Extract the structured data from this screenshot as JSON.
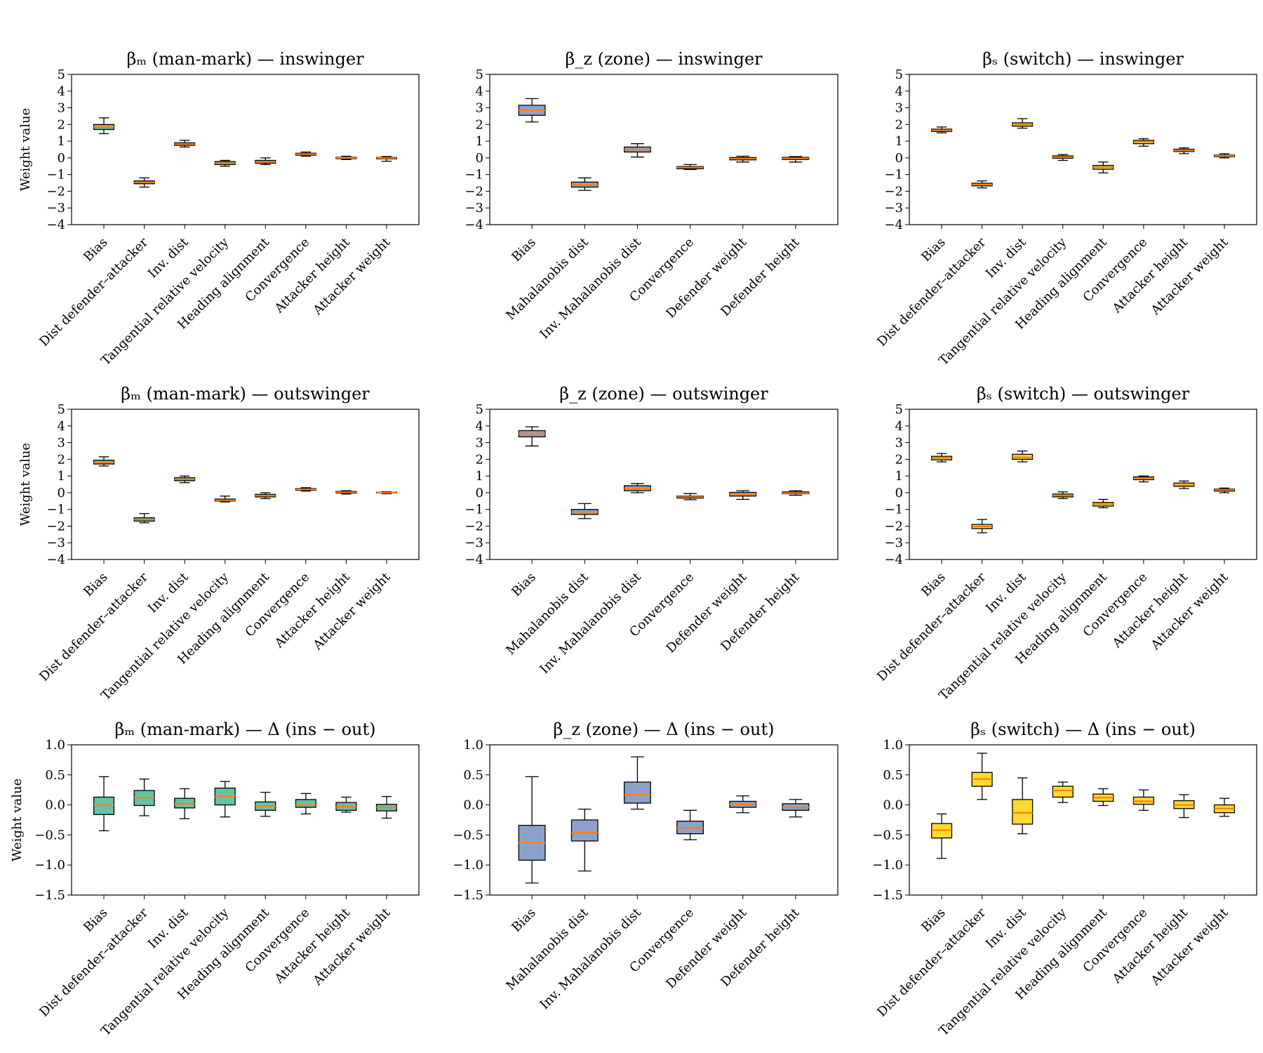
{
  "chart_data": [
    {
      "type": "box",
      "title": "βₘ (man-mark) — inswinger",
      "ylabel": "Weight value",
      "ylim": [
        -4,
        5
      ],
      "yticks": [
        "5",
        "4",
        "3",
        "2",
        "1",
        "0",
        "−1",
        "−2",
        "−3",
        "−4"
      ],
      "box_color": "#66c2a5",
      "categories": [
        "Bias",
        "Dist defender–attacker",
        "Inv. dist",
        "Tangential relative velocity",
        "Heading alignment",
        "Convergence",
        "Attacker height",
        "Attacker weight"
      ],
      "boxes": [
        {
          "min": 1.45,
          "q1": 1.7,
          "median": 1.85,
          "q3": 2.0,
          "max": 2.4
        },
        {
          "min": -1.75,
          "q1": -1.55,
          "median": -1.47,
          "q3": -1.38,
          "max": -1.2
        },
        {
          "min": 0.65,
          "q1": 0.75,
          "median": 0.82,
          "q3": 0.9,
          "max": 1.05
        },
        {
          "min": -0.5,
          "q1": -0.4,
          "median": -0.32,
          "q3": -0.22,
          "max": -0.15
        },
        {
          "min": -0.4,
          "q1": -0.32,
          "median": -0.25,
          "q3": -0.15,
          "max": 0.0
        },
        {
          "min": 0.1,
          "q1": 0.16,
          "median": 0.22,
          "q3": 0.28,
          "max": 0.35
        },
        {
          "min": -0.1,
          "q1": -0.05,
          "median": 0.0,
          "q3": 0.04,
          "max": 0.1
        },
        {
          "min": -0.2,
          "q1": -0.06,
          "median": -0.01,
          "q3": 0.03,
          "max": 0.08
        }
      ]
    },
    {
      "type": "box",
      "title": "β_z (zone) — inswinger",
      "ylabel": "",
      "ylim": [
        -4,
        5
      ],
      "yticks": [
        "5",
        "4",
        "3",
        "2",
        "1",
        "0",
        "−1",
        "−2",
        "−3",
        "−4"
      ],
      "box_color": "#8da0cb",
      "categories": [
        "Bias",
        "Mahalanobis dist",
        "Inv. Mahalanobis dist",
        "Convergence",
        "Defender weight",
        "Defender height"
      ],
      "boxes": [
        {
          "min": 2.15,
          "q1": 2.55,
          "median": 2.85,
          "q3": 3.15,
          "max": 3.55
        },
        {
          "min": -1.95,
          "q1": -1.75,
          "median": -1.62,
          "q3": -1.45,
          "max": -1.2
        },
        {
          "min": 0.05,
          "q1": 0.35,
          "median": 0.5,
          "q3": 0.65,
          "max": 0.85
        },
        {
          "min": -0.7,
          "q1": -0.65,
          "median": -0.58,
          "q3": -0.52,
          "max": -0.4
        },
        {
          "min": -0.25,
          "q1": -0.12,
          "median": -0.05,
          "q3": 0.02,
          "max": 0.1
        },
        {
          "min": -0.25,
          "q1": -0.1,
          "median": -0.03,
          "q3": 0.03,
          "max": 0.08
        }
      ]
    },
    {
      "type": "box",
      "title": "βₛ (switch) — inswinger",
      "ylabel": "",
      "ylim": [
        -4,
        5
      ],
      "yticks": [
        "5",
        "4",
        "3",
        "2",
        "1",
        "0",
        "−1",
        "−2",
        "−3",
        "−4"
      ],
      "box_color": "#ffd92f",
      "categories": [
        "Bias",
        "Dist defender–attacker",
        "Inv. dist",
        "Tangential relative velocity",
        "Heading alignment",
        "Convergence",
        "Attacker height",
        "Attacker weight"
      ],
      "boxes": [
        {
          "min": 1.5,
          "q1": 1.58,
          "median": 1.65,
          "q3": 1.72,
          "max": 1.85
        },
        {
          "min": -1.8,
          "q1": -1.68,
          "median": -1.6,
          "q3": -1.52,
          "max": -1.38
        },
        {
          "min": 1.78,
          "q1": 1.9,
          "median": 2.0,
          "q3": 2.1,
          "max": 2.35
        },
        {
          "min": -0.15,
          "q1": -0.02,
          "median": 0.05,
          "q3": 0.12,
          "max": 0.2
        },
        {
          "min": -0.9,
          "q1": -0.68,
          "median": -0.55,
          "q3": -0.45,
          "max": -0.25
        },
        {
          "min": 0.7,
          "q1": 0.85,
          "median": 0.97,
          "q3": 1.05,
          "max": 1.15
        },
        {
          "min": 0.25,
          "q1": 0.38,
          "median": 0.45,
          "q3": 0.52,
          "max": 0.6
        },
        {
          "min": 0.0,
          "q1": 0.07,
          "median": 0.12,
          "q3": 0.17,
          "max": 0.25
        }
      ]
    },
    {
      "type": "box",
      "title": "βₘ (man-mark) — outswinger",
      "ylabel": "Weight value",
      "ylim": [
        -4,
        5
      ],
      "yticks": [
        "5",
        "4",
        "3",
        "2",
        "1",
        "0",
        "−1",
        "−2",
        "−3",
        "−4"
      ],
      "box_color": "#66c2a5",
      "categories": [
        "Bias",
        "Dist defender–attacker",
        "Inv. dist",
        "Tangential relative velocity",
        "Heading alignment",
        "Convergence",
        "Attacker height",
        "Attacker weight"
      ],
      "boxes": [
        {
          "min": 1.6,
          "q1": 1.72,
          "median": 1.82,
          "q3": 1.95,
          "max": 2.15
        },
        {
          "min": -1.8,
          "q1": -1.7,
          "median": -1.6,
          "q3": -1.5,
          "max": -1.25
        },
        {
          "min": 0.6,
          "q1": 0.72,
          "median": 0.8,
          "q3": 0.9,
          "max": 1.0
        },
        {
          "min": -0.55,
          "q1": -0.5,
          "median": -0.45,
          "q3": -0.38,
          "max": -0.2
        },
        {
          "min": -0.35,
          "q1": -0.25,
          "median": -0.18,
          "q3": -0.1,
          "max": 0.0
        },
        {
          "min": 0.1,
          "q1": 0.15,
          "median": 0.2,
          "q3": 0.25,
          "max": 0.3
        },
        {
          "min": -0.08,
          "q1": -0.02,
          "median": 0.03,
          "q3": 0.08,
          "max": 0.12
        },
        {
          "min": -0.06,
          "q1": -0.02,
          "median": 0.0,
          "q3": 0.03,
          "max": 0.06
        }
      ]
    },
    {
      "type": "box",
      "title": "β_z (zone) — outswinger",
      "ylabel": "",
      "ylim": [
        -4,
        5
      ],
      "yticks": [
        "5",
        "4",
        "3",
        "2",
        "1",
        "0",
        "−1",
        "−2",
        "−3",
        "−4"
      ],
      "box_color": "#8da0cb",
      "categories": [
        "Bias",
        "Mahalanobis dist",
        "Inv. Mahalanobis dist",
        "Convergence",
        "Defender weight",
        "Defender height"
      ],
      "boxes": [
        {
          "min": 2.8,
          "q1": 3.35,
          "median": 3.55,
          "q3": 3.72,
          "max": 3.95
        },
        {
          "min": -1.55,
          "q1": -1.3,
          "median": -1.15,
          "q3": -1.0,
          "max": -0.65
        },
        {
          "min": 0.0,
          "q1": 0.12,
          "median": 0.25,
          "q3": 0.42,
          "max": 0.55
        },
        {
          "min": -0.42,
          "q1": -0.32,
          "median": -0.25,
          "q3": -0.2,
          "max": -0.05
        },
        {
          "min": -0.4,
          "q1": -0.2,
          "median": -0.1,
          "q3": 0.02,
          "max": 0.12
        },
        {
          "min": -0.15,
          "q1": -0.06,
          "median": -0.02,
          "q3": 0.05,
          "max": 0.12
        }
      ]
    },
    {
      "type": "box",
      "title": "βₛ (switch) — outswinger",
      "ylabel": "",
      "ylim": [
        -4,
        5
      ],
      "yticks": [
        "5",
        "4",
        "3",
        "2",
        "1",
        "0",
        "−1",
        "−2",
        "−3",
        "−4"
      ],
      "box_color": "#ffd92f",
      "categories": [
        "Bias",
        "Dist defender–attacker",
        "Inv. dist",
        "Tangential relative velocity",
        "Heading alignment",
        "Convergence",
        "Attacker height",
        "Attacker weight"
      ],
      "boxes": [
        {
          "min": 1.85,
          "q1": 1.97,
          "median": 2.08,
          "q3": 2.18,
          "max": 2.35
        },
        {
          "min": -2.4,
          "q1": -2.15,
          "median": -2.02,
          "q3": -1.9,
          "max": -1.6
        },
        {
          "min": 1.85,
          "q1": 2.0,
          "median": 2.12,
          "q3": 2.3,
          "max": 2.5
        },
        {
          "min": -0.35,
          "q1": -0.25,
          "median": -0.17,
          "q3": -0.08,
          "max": 0.05
        },
        {
          "min": -0.9,
          "q1": -0.8,
          "median": -0.68,
          "q3": -0.58,
          "max": -0.4
        },
        {
          "min": 0.65,
          "q1": 0.78,
          "median": 0.87,
          "q3": 0.95,
          "max": 1.0
        },
        {
          "min": 0.25,
          "q1": 0.38,
          "median": 0.45,
          "q3": 0.58,
          "max": 0.7
        },
        {
          "min": 0.0,
          "q1": 0.1,
          "median": 0.17,
          "q3": 0.22,
          "max": 0.28
        }
      ]
    },
    {
      "type": "box",
      "title": "βₘ (man-mark) — Δ (ins − out)",
      "ylabel": "Weight value",
      "ylim": [
        -1.5,
        1.0
      ],
      "yticks": [
        "1.0",
        "0.5",
        "0.0",
        "−0.5",
        "−1.0",
        "−1.5"
      ],
      "box_color": "#66c2a5",
      "categories": [
        "Bias",
        "Dist defender–attacker",
        "Inv. dist",
        "Tangential relative velocity",
        "Heading alignment",
        "Convergence",
        "Attacker height",
        "Attacker weight"
      ],
      "boxes": [
        {
          "min": -0.43,
          "q1": -0.16,
          "median": 0.0,
          "q3": 0.13,
          "max": 0.47
        },
        {
          "min": -0.18,
          "q1": -0.01,
          "median": 0.12,
          "q3": 0.24,
          "max": 0.43
        },
        {
          "min": -0.23,
          "q1": -0.05,
          "median": 0.02,
          "q3": 0.11,
          "max": 0.27
        },
        {
          "min": -0.2,
          "q1": 0.0,
          "median": 0.14,
          "q3": 0.28,
          "max": 0.39
        },
        {
          "min": -0.19,
          "q1": -0.09,
          "median": -0.02,
          "q3": 0.05,
          "max": 0.21
        },
        {
          "min": -0.15,
          "q1": -0.04,
          "median": 0.0,
          "q3": 0.09,
          "max": 0.19
        },
        {
          "min": -0.12,
          "q1": -0.09,
          "median": -0.03,
          "q3": 0.04,
          "max": 0.13
        },
        {
          "min": -0.22,
          "q1": -0.1,
          "median": -0.04,
          "q3": 0.01,
          "max": 0.14
        }
      ]
    },
    {
      "type": "box",
      "title": "β_z (zone) — Δ (ins − out)",
      "ylabel": "",
      "ylim": [
        -1.5,
        1.0
      ],
      "yticks": [
        "1.0",
        "0.5",
        "0.0",
        "−0.5",
        "−1.0",
        "−1.5"
      ],
      "box_color": "#8da0cb",
      "categories": [
        "Bias",
        "Mahalanobis dist",
        "Inv. Mahalanobis dist",
        "Convergence",
        "Defender weight",
        "Defender height"
      ],
      "boxes": [
        {
          "min": -1.3,
          "q1": -0.92,
          "median": -0.63,
          "q3": -0.34,
          "max": 0.47
        },
        {
          "min": -1.1,
          "q1": -0.6,
          "median": -0.46,
          "q3": -0.25,
          "max": -0.07
        },
        {
          "min": -0.07,
          "q1": 0.03,
          "median": 0.17,
          "q3": 0.38,
          "max": 0.8
        },
        {
          "min": -0.58,
          "q1": -0.48,
          "median": -0.38,
          "q3": -0.27,
          "max": -0.09
        },
        {
          "min": -0.13,
          "q1": -0.04,
          "median": 0.01,
          "q3": 0.06,
          "max": 0.15
        },
        {
          "min": -0.2,
          "q1": -0.09,
          "median": -0.04,
          "q3": 0.02,
          "max": 0.09
        }
      ]
    },
    {
      "type": "box",
      "title": "βₛ (switch) — Δ (ins − out)",
      "ylabel": "",
      "ylim": [
        -1.5,
        1.0
      ],
      "yticks": [
        "1.0",
        "0.5",
        "0.0",
        "−0.5",
        "−1.0",
        "−1.5"
      ],
      "box_color": "#ffd92f",
      "categories": [
        "Bias",
        "Dist defender–attacker",
        "Inv. dist",
        "Tangential relative velocity",
        "Heading alignment",
        "Convergence",
        "Attacker height",
        "Attacker weight"
      ],
      "boxes": [
        {
          "min": -0.89,
          "q1": -0.55,
          "median": -0.42,
          "q3": -0.31,
          "max": -0.15
        },
        {
          "min": 0.09,
          "q1": 0.31,
          "median": 0.43,
          "q3": 0.54,
          "max": 0.86
        },
        {
          "min": -0.48,
          "q1": -0.32,
          "median": -0.13,
          "q3": 0.09,
          "max": 0.45
        },
        {
          "min": 0.04,
          "q1": 0.13,
          "median": 0.24,
          "q3": 0.31,
          "max": 0.38
        },
        {
          "min": -0.01,
          "q1": 0.06,
          "median": 0.12,
          "q3": 0.18,
          "max": 0.27
        },
        {
          "min": -0.09,
          "q1": 0.01,
          "median": 0.06,
          "q3": 0.13,
          "max": 0.25
        },
        {
          "min": -0.21,
          "q1": -0.06,
          "median": 0.0,
          "q3": 0.07,
          "max": 0.17
        },
        {
          "min": -0.19,
          "q1": -0.13,
          "median": -0.06,
          "q3": 0.0,
          "max": 0.11
        }
      ]
    }
  ],
  "colors": {
    "median_line": "#ff7f0e",
    "whisker": "#000000",
    "box_edge": "#000000"
  }
}
